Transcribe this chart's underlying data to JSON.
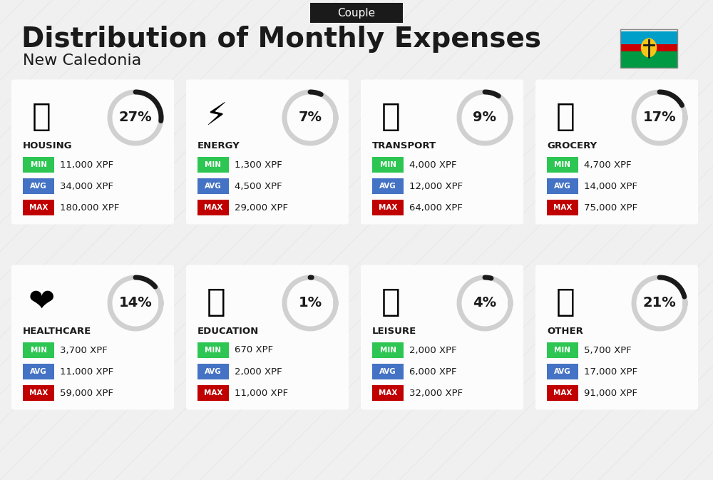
{
  "title": "Distribution of Monthly Expenses",
  "subtitle": "New Caledonia",
  "tag": "Couple",
  "bg_color": "#f0f0f0",
  "categories": [
    {
      "name": "HOUSING",
      "pct": 27,
      "min_val": "11,000 XPF",
      "avg_val": "34,000 XPF",
      "max_val": "180,000 XPF",
      "row": 0,
      "col": 0
    },
    {
      "name": "ENERGY",
      "pct": 7,
      "min_val": "1,300 XPF",
      "avg_val": "4,500 XPF",
      "max_val": "29,000 XPF",
      "row": 0,
      "col": 1
    },
    {
      "name": "TRANSPORT",
      "pct": 9,
      "min_val": "4,000 XPF",
      "avg_val": "12,000 XPF",
      "max_val": "64,000 XPF",
      "row": 0,
      "col": 2
    },
    {
      "name": "GROCERY",
      "pct": 17,
      "min_val": "4,700 XPF",
      "avg_val": "14,000 XPF",
      "max_val": "75,000 XPF",
      "row": 0,
      "col": 3
    },
    {
      "name": "HEALTHCARE",
      "pct": 14,
      "min_val": "3,700 XPF",
      "avg_val": "11,000 XPF",
      "max_val": "59,000 XPF",
      "row": 1,
      "col": 0
    },
    {
      "name": "EDUCATION",
      "pct": 1,
      "min_val": "670 XPF",
      "avg_val": "2,000 XPF",
      "max_val": "11,000 XPF",
      "row": 1,
      "col": 1
    },
    {
      "name": "LEISURE",
      "pct": 4,
      "min_val": "2,000 XPF",
      "avg_val": "6,000 XPF",
      "max_val": "32,000 XPF",
      "row": 1,
      "col": 2
    },
    {
      "name": "OTHER",
      "pct": 21,
      "min_val": "5,700 XPF",
      "avg_val": "17,000 XPF",
      "max_val": "91,000 XPF",
      "row": 1,
      "col": 3
    }
  ],
  "min_color": "#2dc653",
  "avg_color": "#4472c4",
  "max_color": "#c00000",
  "label_color_text": "#ffffff",
  "arc_color": "#1a1a1a",
  "arc_bg_color": "#d0d0d0",
  "card_bg": "#ffffff",
  "diagonal_line_color": "#e0e0e0"
}
